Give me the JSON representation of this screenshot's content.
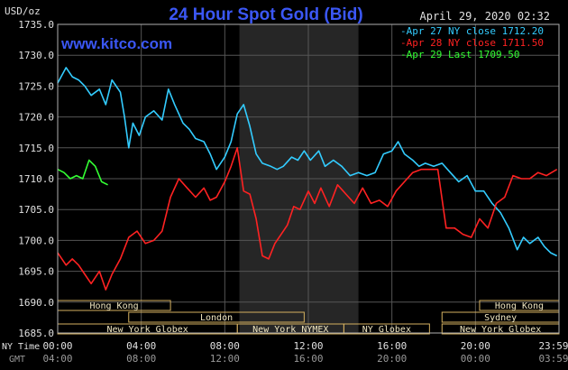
{
  "chart_data": {
    "type": "line",
    "title": "24 Hour Spot Gold (Bid)",
    "watermark": "www.kitco.com",
    "unit_label": "USD/oz",
    "date_label": "April 29, 2020 02:32",
    "ylim": [
      1685.0,
      1735.0
    ],
    "y_ticks": [
      "1735.0",
      "1730.0",
      "1725.0",
      "1720.0",
      "1715.0",
      "1710.0",
      "1705.0",
      "1700.0",
      "1695.0",
      "1690.0",
      "1685.0"
    ],
    "y_tick_values": [
      1735,
      1730,
      1725,
      1720,
      1715,
      1710,
      1705,
      1700,
      1695,
      1690,
      1685
    ],
    "xlim": [
      0,
      24
    ],
    "x_ticks": [
      0,
      4,
      8,
      12,
      16,
      20,
      24
    ],
    "x_row_label_1": "NY Time",
    "x_row_label_2": "GMT",
    "x_ticks_ny": [
      "00:00",
      "04:00",
      "08:00",
      "12:00",
      "16:00",
      "20:00",
      "23:59"
    ],
    "x_ticks_gmt": [
      "04:00",
      "08:00",
      "12:00",
      "16:00",
      "20:00",
      "00:00",
      "03:59"
    ],
    "shaded_range": [
      8.7,
      14.4
    ],
    "legend": [
      {
        "text": "Apr 27 NY close 1712.20",
        "color": "#33ccff"
      },
      {
        "text": "Apr 28 NY close 1711.50",
        "color": "#ff2222"
      },
      {
        "text": "Apr 29 Last 1709.50",
        "color": "#33ff33"
      }
    ],
    "series": [
      {
        "color": "#33ccff",
        "x": [
          0,
          0.4,
          0.7,
          1.0,
          1.3,
          1.6,
          2.0,
          2.3,
          2.6,
          3.0,
          3.2,
          3.4,
          3.6,
          3.9,
          4.2,
          4.6,
          5.0,
          5.3,
          5.6,
          6.0,
          6.3,
          6.6,
          7.0,
          7.3,
          7.6,
          8.0,
          8.3,
          8.6,
          8.9,
          9.2,
          9.5,
          9.8,
          10.2,
          10.5,
          10.8,
          11.2,
          11.5,
          11.8,
          12.1,
          12.5,
          12.8,
          13.2,
          13.6,
          14.0,
          14.4,
          14.8,
          15.2,
          15.6,
          16.0,
          16.3,
          16.6,
          17.0,
          17.3,
          17.6,
          18.0,
          18.4,
          18.8,
          19.2,
          19.6,
          20.0,
          20.4,
          20.8,
          21.2,
          21.6,
          22.0,
          22.3,
          22.6,
          23.0,
          23.3,
          23.6,
          23.9
        ],
        "values": [
          1725.5,
          1728.0,
          1726.5,
          1726.0,
          1725.0,
          1723.5,
          1724.5,
          1722.0,
          1726.0,
          1724.0,
          1720.0,
          1715.0,
          1719.0,
          1717.0,
          1720.0,
          1721.0,
          1719.5,
          1724.5,
          1722.0,
          1719.0,
          1718.0,
          1716.5,
          1716.0,
          1714.0,
          1711.5,
          1713.5,
          1716.0,
          1720.5,
          1722.0,
          1718.5,
          1714.0,
          1712.5,
          1712.0,
          1711.5,
          1712.0,
          1713.5,
          1713.0,
          1714.5,
          1713.0,
          1714.5,
          1712.0,
          1713.0,
          1712.0,
          1710.5,
          1711.0,
          1710.5,
          1711.0,
          1714.0,
          1714.5,
          1716.0,
          1714.0,
          1713.0,
          1712.0,
          1712.5,
          1712.0,
          1712.5,
          1711.0,
          1709.5,
          1710.5,
          1708.0,
          1708.0,
          1706.0,
          1704.5,
          1702.0,
          1698.5,
          1700.5,
          1699.5,
          1700.5,
          1699.0,
          1698.0,
          1697.5
        ]
      },
      {
        "color": "#ff2222",
        "x": [
          0,
          0.4,
          0.7,
          1.0,
          1.3,
          1.6,
          2.0,
          2.3,
          2.6,
          3.0,
          3.4,
          3.8,
          4.2,
          4.6,
          5.0,
          5.4,
          5.8,
          6.2,
          6.6,
          7.0,
          7.3,
          7.6,
          8.0,
          8.3,
          8.6,
          8.9,
          9.2,
          9.5,
          9.8,
          10.1,
          10.4,
          10.7,
          11.0,
          11.3,
          11.6,
          12.0,
          12.3,
          12.6,
          13.0,
          13.4,
          13.8,
          14.2,
          14.6,
          15.0,
          15.4,
          15.8,
          16.2,
          16.6,
          17.0,
          17.4,
          17.8,
          18.2,
          18.6,
          19.0,
          19.4,
          19.8,
          20.2,
          20.6,
          21.0,
          21.4,
          21.8,
          22.2,
          22.6,
          23.0,
          23.4,
          23.9
        ],
        "values": [
          1698.0,
          1696.0,
          1697.0,
          1696.0,
          1694.5,
          1693.0,
          1695.0,
          1692.0,
          1694.5,
          1697.0,
          1700.5,
          1701.5,
          1699.5,
          1700.0,
          1701.5,
          1707.0,
          1710.0,
          1708.5,
          1707.0,
          1708.5,
          1706.5,
          1707.0,
          1709.5,
          1712.0,
          1715.0,
          1708.0,
          1707.5,
          1703.5,
          1697.5,
          1697.0,
          1699.5,
          1701.0,
          1702.5,
          1705.5,
          1705.0,
          1708.0,
          1706.0,
          1708.5,
          1705.5,
          1709.0,
          1707.5,
          1706.0,
          1708.5,
          1706.0,
          1706.5,
          1705.5,
          1708.0,
          1709.5,
          1711.0,
          1711.5,
          1711.5,
          1711.5,
          1702.0,
          1702.0,
          1701.0,
          1700.5,
          1703.5,
          1702.0,
          1706.0,
          1707.0,
          1710.5,
          1710.0,
          1710.0,
          1711.0,
          1710.5,
          1711.5
        ]
      },
      {
        "color": "#33ff33",
        "x": [
          0,
          0.3,
          0.6,
          0.9,
          1.2,
          1.5,
          1.8,
          2.1,
          2.4
        ],
        "values": [
          1711.5,
          1711.0,
          1710.0,
          1710.5,
          1710.0,
          1713.0,
          1712.0,
          1709.5,
          1709.0
        ]
      }
    ],
    "sessions": {
      "row1": [
        {
          "label": "Hong Kong",
          "start": 0,
          "end": 5.4
        },
        {
          "label": "Hong Kong",
          "start": 20.2,
          "end": 24
        }
      ],
      "row2": [
        {
          "label": "London",
          "start": 3.4,
          "end": 11.8
        },
        {
          "label": "Sydney",
          "start": 18.4,
          "end": 24
        }
      ],
      "row3": [
        {
          "label": "New York Globex",
          "start": 0,
          "end": 8.6
        },
        {
          "label": "New York NYMEX",
          "start": 8.6,
          "end": 13.7
        },
        {
          "label": "NY Globex",
          "start": 13.7,
          "end": 17.8
        },
        {
          "label": "New York Globex",
          "start": 18.4,
          "end": 24
        }
      ]
    }
  }
}
